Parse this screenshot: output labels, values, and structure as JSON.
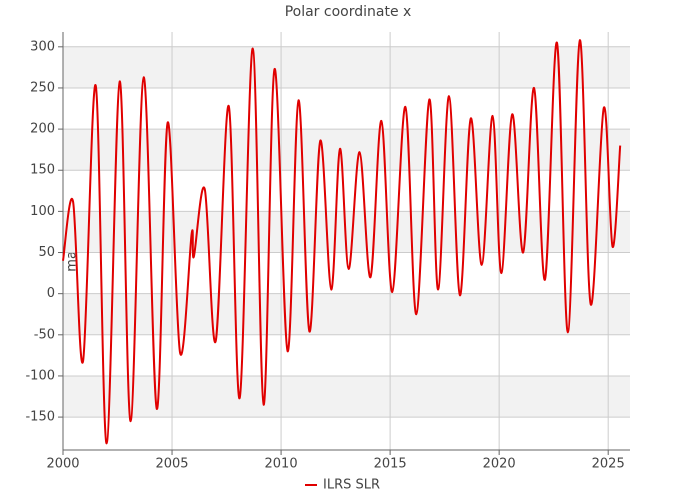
{
  "chart_data": {
    "type": "line",
    "title": "Polar coordinate x",
    "ylabel": "mas",
    "x": [
      2000.0,
      2000.46,
      2000.92,
      2001.5,
      2002.0,
      2002.6,
      2003.1,
      2003.7,
      2004.3,
      2004.8,
      2005.37,
      2005.9,
      2006.0,
      2006.5,
      2007.0,
      2007.6,
      2008.1,
      2008.7,
      2009.2,
      2009.7,
      2010.3,
      2010.8,
      2011.3,
      2011.8,
      2012.3,
      2012.7,
      2013.1,
      2013.6,
      2014.1,
      2014.6,
      2015.1,
      2015.7,
      2016.2,
      2016.8,
      2017.2,
      2017.7,
      2018.2,
      2018.7,
      2019.2,
      2019.7,
      2020.1,
      2020.6,
      2021.1,
      2021.6,
      2022.1,
      2022.65,
      2023.15,
      2023.7,
      2024.2,
      2024.8,
      2025.2,
      2025.55
    ],
    "series": [
      {
        "name": "ILRS SLR",
        "color": "#e00000",
        "values": [
          40,
          112,
          -82,
          253,
          -182,
          258,
          -155,
          263,
          -140,
          208,
          -72,
          73,
          45,
          127,
          -58,
          228,
          -127,
          298,
          -135,
          273,
          -70,
          235,
          -46,
          186,
          5,
          176,
          30,
          172,
          20,
          210,
          2,
          227,
          -25,
          236,
          5,
          240,
          -2,
          213,
          35,
          216,
          25,
          218,
          50,
          250,
          17,
          305,
          -47,
          308,
          -13,
          226,
          57,
          180
        ]
      }
    ],
    "xlim": [
      2000,
      2026
    ],
    "xticks": [
      2000,
      2005,
      2010,
      2015,
      2020,
      2025
    ],
    "ylim": [
      -190,
      318
    ],
    "yticks": [
      -150,
      -100,
      -50,
      0,
      50,
      100,
      150,
      200,
      250,
      300
    ],
    "grid": true,
    "legend": "bottom"
  }
}
